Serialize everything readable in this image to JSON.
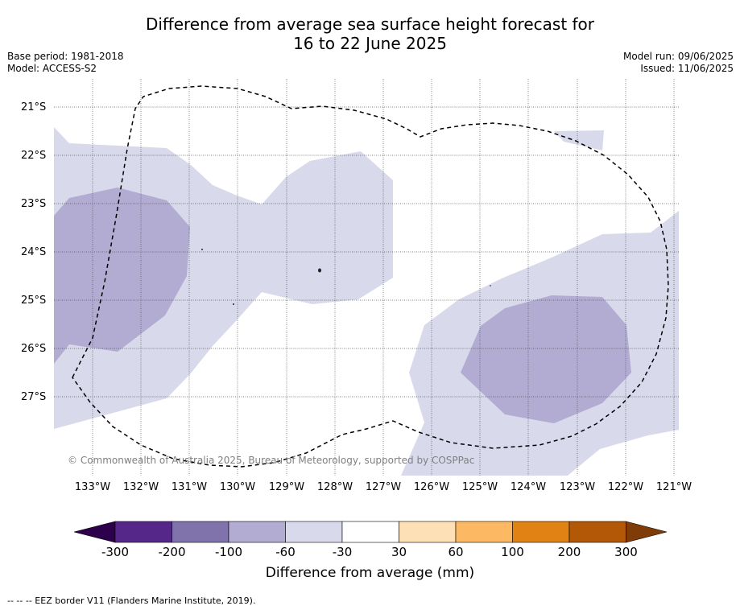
{
  "title_line1": "Difference from average sea surface height forecast for",
  "title_line2": "16 to 22 June 2025",
  "base_period": "Base period: 1981-2018",
  "model": "Model: ACCESS-S2",
  "model_run": "Model run: 09/06/2025",
  "issued": "Issued: 11/06/2025",
  "latitudes": [
    "21°S",
    "22°S",
    "23°S",
    "24°S",
    "25°S",
    "26°S",
    "27°S"
  ],
  "longitudes": [
    "133°W",
    "132°W",
    "131°W",
    "130°W",
    "129°W",
    "128°W",
    "127°W",
    "126°W",
    "125°W",
    "124°W",
    "123°W",
    "122°W",
    "121°W"
  ],
  "copyright": "© Commonwealth of Australia 2025, Bureau of Meteorology, supported by COSPPac",
  "colorbar": {
    "ticks": [
      "-300",
      "-200",
      "-100",
      "-60",
      "-30",
      "30",
      "60",
      "100",
      "200",
      "300"
    ],
    "colors": [
      "#2d004b",
      "#542788",
      "#8073ac",
      "#b2abd2",
      "#d8daeb",
      "#ffffff",
      "#fee0b6",
      "#fdb863",
      "#e08214",
      "#b35806",
      "#7f3b08"
    ],
    "label": "Difference from average (mm)"
  },
  "footer": "--  --  -- EEZ border V11 (Flanders Marine Institute, 2019)."
}
